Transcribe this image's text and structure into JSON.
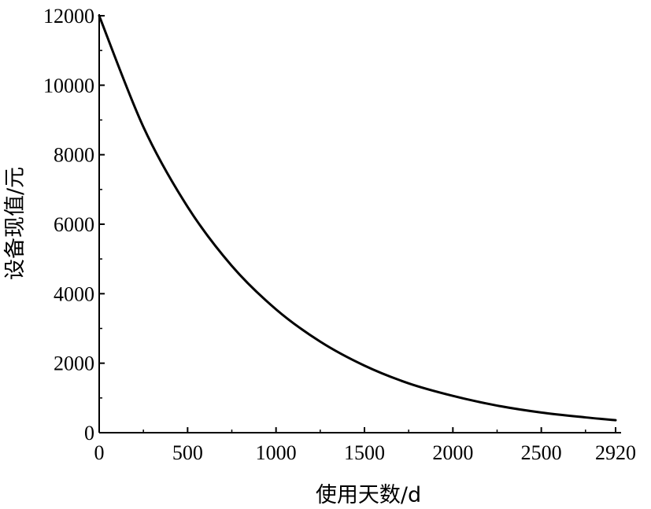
{
  "chart_data": {
    "type": "line",
    "title": "",
    "xlabel": "使用天数/d",
    "ylabel": "设备现值/元",
    "xlim": [
      0,
      2920
    ],
    "ylim": [
      0,
      12000
    ],
    "xticks": [
      0,
      500,
      1000,
      1500,
      2000,
      2500,
      2920
    ],
    "xtick_labels": [
      "0",
      "500",
      "1000",
      "1500",
      "2000",
      "2500",
      "2920"
    ],
    "yticks": [
      0,
      2000,
      4000,
      6000,
      8000,
      10000,
      12000
    ],
    "ytick_labels": [
      "0",
      "2000",
      "4000",
      "6000",
      "8000",
      "10000",
      "12000"
    ],
    "grid": false,
    "legend": "none",
    "line_color": "#000000",
    "series": [
      {
        "x": [
          0,
          250,
          500,
          750,
          1000,
          1250,
          1500,
          1750,
          2000,
          2250,
          2500,
          2750,
          2920
        ],
        "values": [
          12000,
          8800,
          6500,
          4800,
          3550,
          2620,
          1930,
          1420,
          1060,
          780,
          580,
          440,
          360
        ]
      }
    ]
  }
}
